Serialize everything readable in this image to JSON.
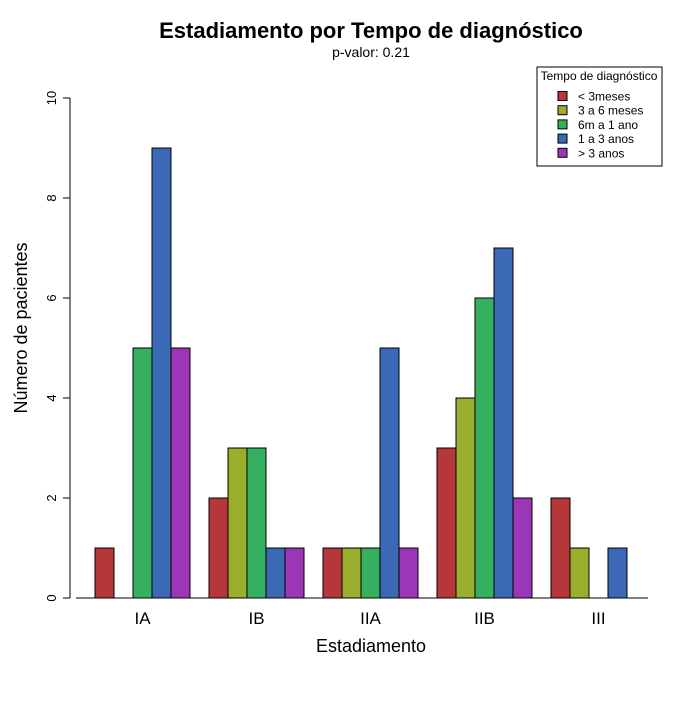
{
  "chart_data": {
    "type": "bar",
    "title": "Estadiamento por Tempo de diagnóstico",
    "subtitle": "p-valor: 0.21",
    "xlabel": "Estadiamento",
    "ylabel": "Número de pacientes",
    "ylim": [
      0,
      10
    ],
    "yticks": [
      0,
      2,
      4,
      6,
      8,
      10
    ],
    "categories": [
      "IA",
      "IB",
      "IIA",
      "IIB",
      "III"
    ],
    "legend": {
      "title": "Tempo de diagnóstico",
      "placement": "top-right"
    },
    "series": [
      {
        "name": "< 3meses",
        "color": "#b5373a",
        "values": [
          1,
          2,
          1,
          3,
          2
        ]
      },
      {
        "name": "3 a 6 meses",
        "color": "#9aae2e",
        "values": [
          0,
          3,
          1,
          4,
          1
        ]
      },
      {
        "name": "6m a 1 ano",
        "color": "#35b060",
        "values": [
          5,
          3,
          1,
          6,
          0
        ]
      },
      {
        "name": "1 a 3 anos",
        "color": "#3b69b6",
        "values": [
          9,
          1,
          5,
          7,
          1
        ]
      },
      {
        "name": "> 3 anos",
        "color": "#9b37b6",
        "values": [
          5,
          1,
          1,
          2,
          0
        ]
      }
    ]
  }
}
